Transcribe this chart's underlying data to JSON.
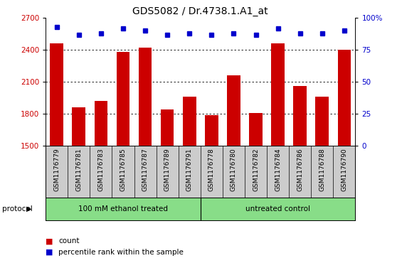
{
  "title": "GDS5082 / Dr.4738.1.A1_at",
  "samples": [
    "GSM1176779",
    "GSM1176781",
    "GSM1176783",
    "GSM1176785",
    "GSM1176787",
    "GSM1176789",
    "GSM1176791",
    "GSM1176778",
    "GSM1176780",
    "GSM1176782",
    "GSM1176784",
    "GSM1176786",
    "GSM1176788",
    "GSM1176790"
  ],
  "counts": [
    2460,
    1860,
    1920,
    2380,
    2420,
    1840,
    1960,
    1790,
    2160,
    1810,
    2460,
    2060,
    1960,
    2400
  ],
  "percentiles": [
    93,
    87,
    88,
    92,
    90,
    87,
    88,
    87,
    88,
    87,
    92,
    88,
    88,
    90
  ],
  "ylim_left": [
    1500,
    2700
  ],
  "ylim_right": [
    0,
    100
  ],
  "yticks_left": [
    1500,
    1800,
    2100,
    2400,
    2700
  ],
  "yticks_right": [
    0,
    25,
    50,
    75,
    100
  ],
  "bar_color": "#cc0000",
  "dot_color": "#0000cc",
  "group1_label": "100 mM ethanol treated",
  "group2_label": "untreated control",
  "group1_count": 7,
  "group2_count": 7,
  "protocol_label": "protocol",
  "legend_count_label": "count",
  "legend_percentile_label": "percentile rank within the sample",
  "bar_width": 0.6,
  "plot_bg_color": "#ffffff",
  "tick_area_bg": "#cccccc",
  "group_bg_color": "#88dd88",
  "title_fontsize": 10,
  "tick_fontsize": 7.5
}
